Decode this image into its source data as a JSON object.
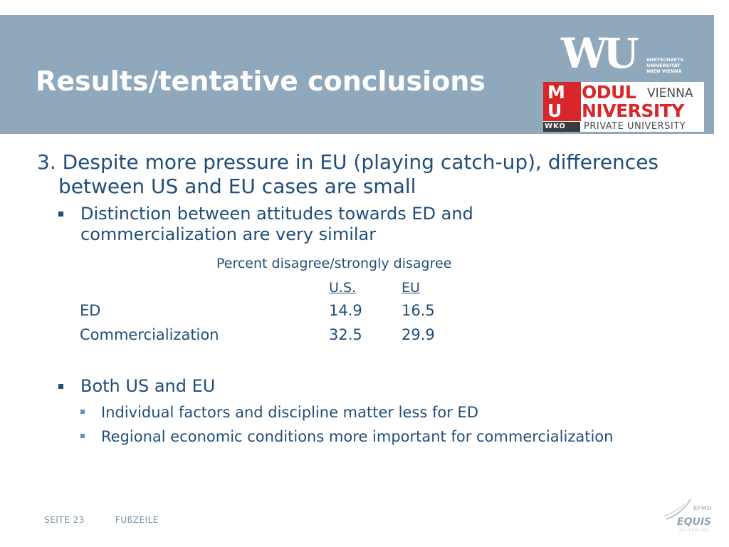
{
  "header": {
    "title": "Results/tentative conclusions",
    "colors": {
      "band": "#8fa8bc",
      "title": "#ffffff"
    }
  },
  "logos": {
    "wu": {
      "letters": "WU",
      "lines": [
        "WIRTSCHAFTS",
        "UNIVERSITÄT",
        "WIEN VIENNA"
      ]
    },
    "modul": {
      "red_letters": "M\nU",
      "word_1": "ODUL",
      "vienna": "VIENNA",
      "word_2": "NIVERSITY",
      "wko": "WKO",
      "private": "PRIVATE  UNIVERSITY",
      "accent": "#d9262b"
    },
    "equis": {
      "top": "EFMD",
      "name": "EQUIS",
      "sub": "ACCREDITED"
    }
  },
  "content": {
    "point_main": "3. Despite more pressure in EU (playing catch-up), differences between US and EU cases are small",
    "bullet_1": "Distinction between attitudes towards ED and commercialization are very similar",
    "table": {
      "caption": "Percent disagree/strongly disagree",
      "columns": [
        "U.S.",
        "EU"
      ],
      "rows": [
        {
          "label": "ED",
          "us": "14.9",
          "eu": "16.5"
        },
        {
          "label": "Commercialization",
          "us": "32.5",
          "eu": "29.9"
        }
      ]
    },
    "bullet_2": "Both US and EU",
    "sub_bullets": [
      "Individual factors and discipline matter less for ED",
      "Regional economic conditions more important for commercialization"
    ],
    "text_color": "#1f4e79"
  },
  "footer": {
    "page": "SEITE 23",
    "text": "FUßZEILE"
  }
}
